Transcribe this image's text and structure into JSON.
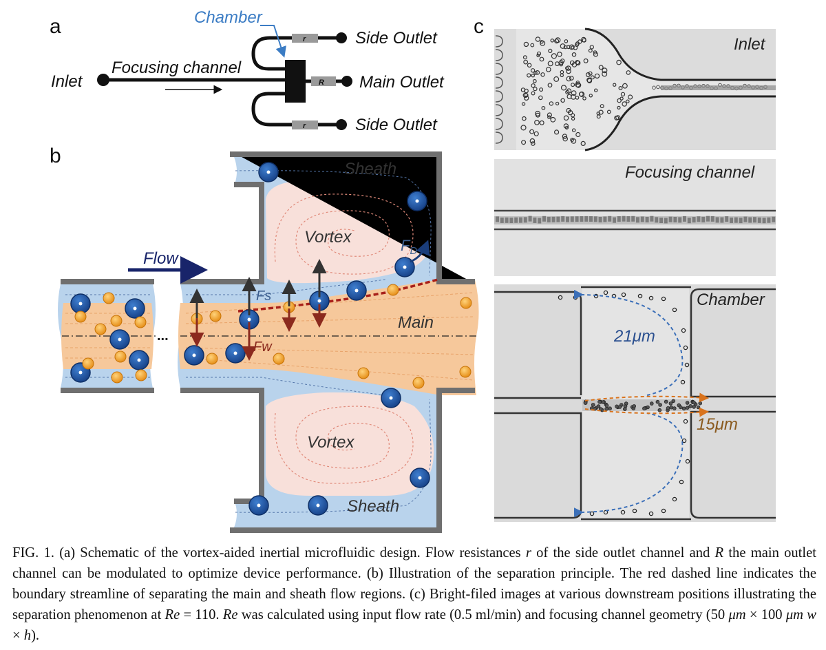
{
  "panel_labels": {
    "a": "a",
    "b": "b",
    "c": "c"
  },
  "panel_a": {
    "inlet": "Inlet",
    "focusing_channel": "Focusing channel",
    "chamber": "Chamber",
    "side_outlet_top": "Side Outlet",
    "main_outlet": "Main Outlet",
    "side_outlet_bottom": "Side Outlet",
    "resistor_side": "r",
    "resistor_main": "R"
  },
  "panel_b": {
    "flow": "Flow",
    "sheath_top": "Sheath",
    "sheath_bottom": "Sheath",
    "vortex_top": "Vortex",
    "vortex_bottom": "Vortex",
    "main": "Main",
    "fs": "Fs",
    "fw": "Fw",
    "fd": "F",
    "fd_sub": "D",
    "ellipsis": "..."
  },
  "panel_c": {
    "inlet": "Inlet",
    "focusing_channel": "Focusing channel",
    "chamber": "Chamber",
    "size_large": "21μm",
    "size_small": "15μm"
  },
  "colors": {
    "sheath_blue": "#b9d3ec",
    "main_orange": "#f6c89b",
    "vortex_pink": "#f8e0da",
    "wall_gray": "#6f6f6f",
    "particle_large": "#1f5ea8",
    "particle_small": "#f0a11c",
    "boundary_red": "#a8201a",
    "flow_navy": "#18246a",
    "chamber_label_blue": "#3b7cc4"
  },
  "caption": {
    "fig": "FIG. 1.",
    "t1": " (a) Schematic of the vortex-aided inertial microfluidic design. Flow resistances ",
    "r": "r",
    "t2": " of the side outlet channel and ",
    "R": "R",
    "t3": " the main outlet channel can be modulated to optimize device performance. (b) Illustration of the separation principle. The red dashed line indicates the boundary streamline of separating the main and sheath flow regions. (c) Bright-filed images at various downstream positions illustrating the separation phenomenon at ",
    "re": "Re",
    "t4": " = 110. ",
    "re2": "Re",
    "t5": " was calculated using input flow rate (0.5 ml/min) and focusing channel geometry (50 ",
    "mu1": "μm",
    "t6": " × 100 ",
    "mu2": "μm",
    "t7": " ",
    "w": "w",
    "t8": " × ",
    "h": "h",
    "t9": ")."
  }
}
